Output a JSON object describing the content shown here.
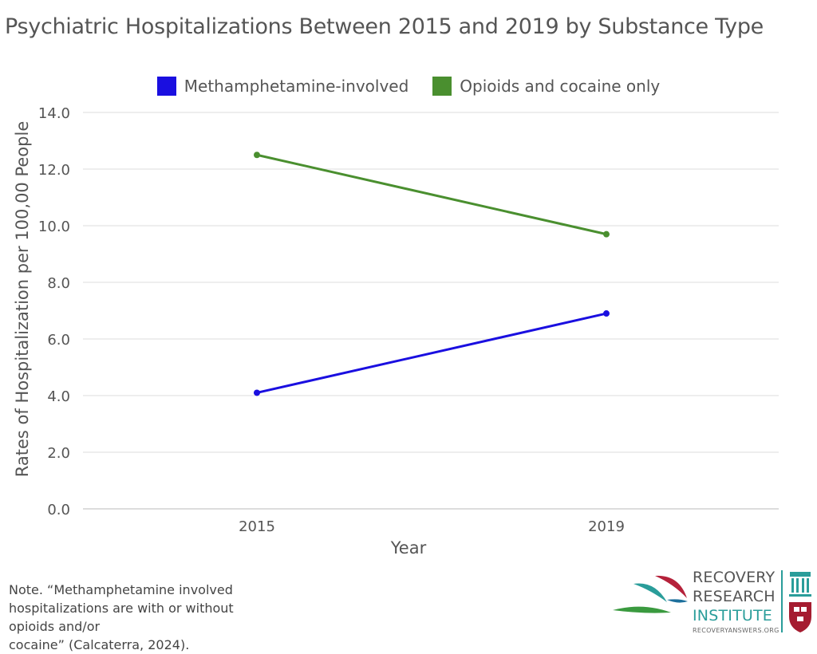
{
  "chart_data": {
    "type": "line",
    "title": "Psychiatric Hospitalizations Between 2015 and 2019 by Substance Type",
    "xlabel": "Year",
    "ylabel": "Rates of Hospitalization per 100,00 People",
    "categories": [
      "2015",
      "2019"
    ],
    "ylim": [
      0,
      14
    ],
    "yticks": [
      "0.0",
      "2.0",
      "4.0",
      "6.0",
      "8.0",
      "10.0",
      "12.0",
      "14.0"
    ],
    "grid": true,
    "legend_position": "top",
    "series": [
      {
        "name": "Methamphetamine-involved",
        "values": [
          4.1,
          6.9
        ],
        "color": "#1a0fe0"
      },
      {
        "name": "Opioids and cocaine only",
        "values": [
          12.5,
          9.7
        ],
        "color": "#4a8f2f"
      }
    ]
  },
  "note": {
    "line1": "Note. “Methamphetamine involved",
    "line2": "hospitalizations are with or without opioids and/or",
    "line3": "cocaine” (Calcaterra, 2024)."
  },
  "logo": {
    "line1": "RECOVERY",
    "line2": "RESEARCH",
    "line3": "INSTITUTE",
    "url": "RECOVERYANSWERS.ORG"
  }
}
